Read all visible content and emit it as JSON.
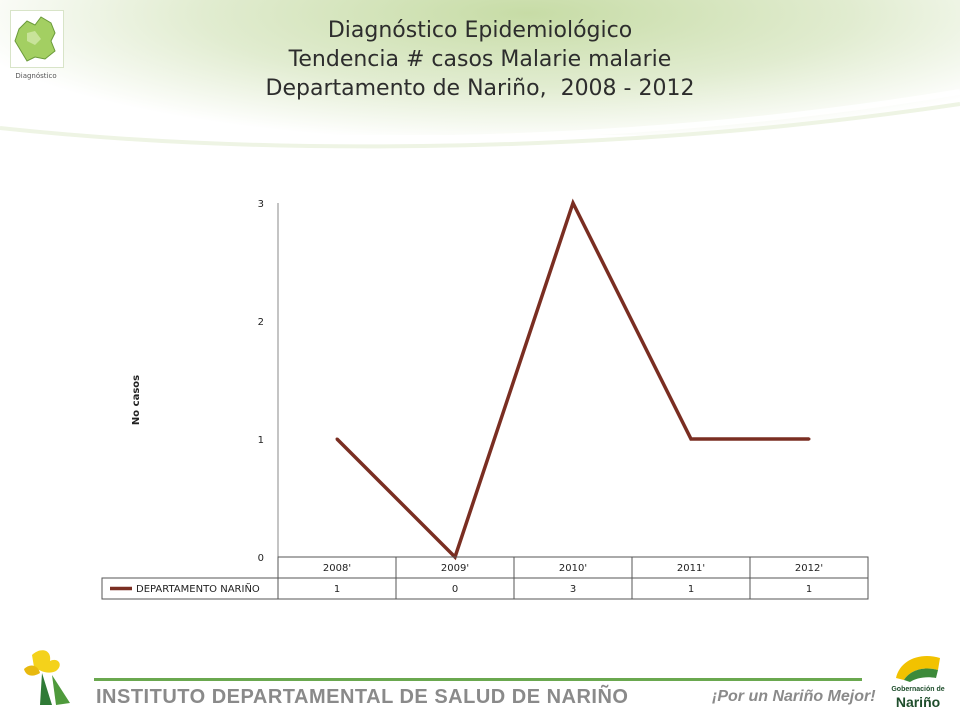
{
  "header": {
    "logo_caption": "Diagnóstico",
    "title_lines": [
      "Diagnóstico Epidemiológico",
      "Tendencia # casos Malarie malarie",
      "Departamento de Nariño,  2008 - 2012"
    ]
  },
  "chart_data": {
    "type": "line",
    "categories": [
      "2008",
      "2009",
      "2010",
      "2011",
      "2012"
    ],
    "category_labels": [
      "2008'",
      "2009'",
      "2010'",
      "2011'",
      "2012'"
    ],
    "series": [
      {
        "name": "DEPARTAMENTO NARIÑO",
        "values": [
          1,
          0,
          3,
          1,
          1
        ],
        "color": "#7a2e22"
      }
    ],
    "ylabel": "No casos",
    "ylim": [
      0,
      3
    ],
    "yticks": [
      0,
      1,
      2,
      3
    ],
    "grid": false,
    "legend": "data-table-bottom"
  },
  "footer": {
    "organization": "INSTITUTO DEPARTAMENTAL DE SALUD DE NARIÑO",
    "slogan": "¡Por un Nariño Mejor!",
    "right_logo_line1": "Gobernación de",
    "right_logo_line2": "Nariño"
  },
  "colors": {
    "accent_green": "#6aa84f",
    "series_line": "#7a2e22"
  }
}
